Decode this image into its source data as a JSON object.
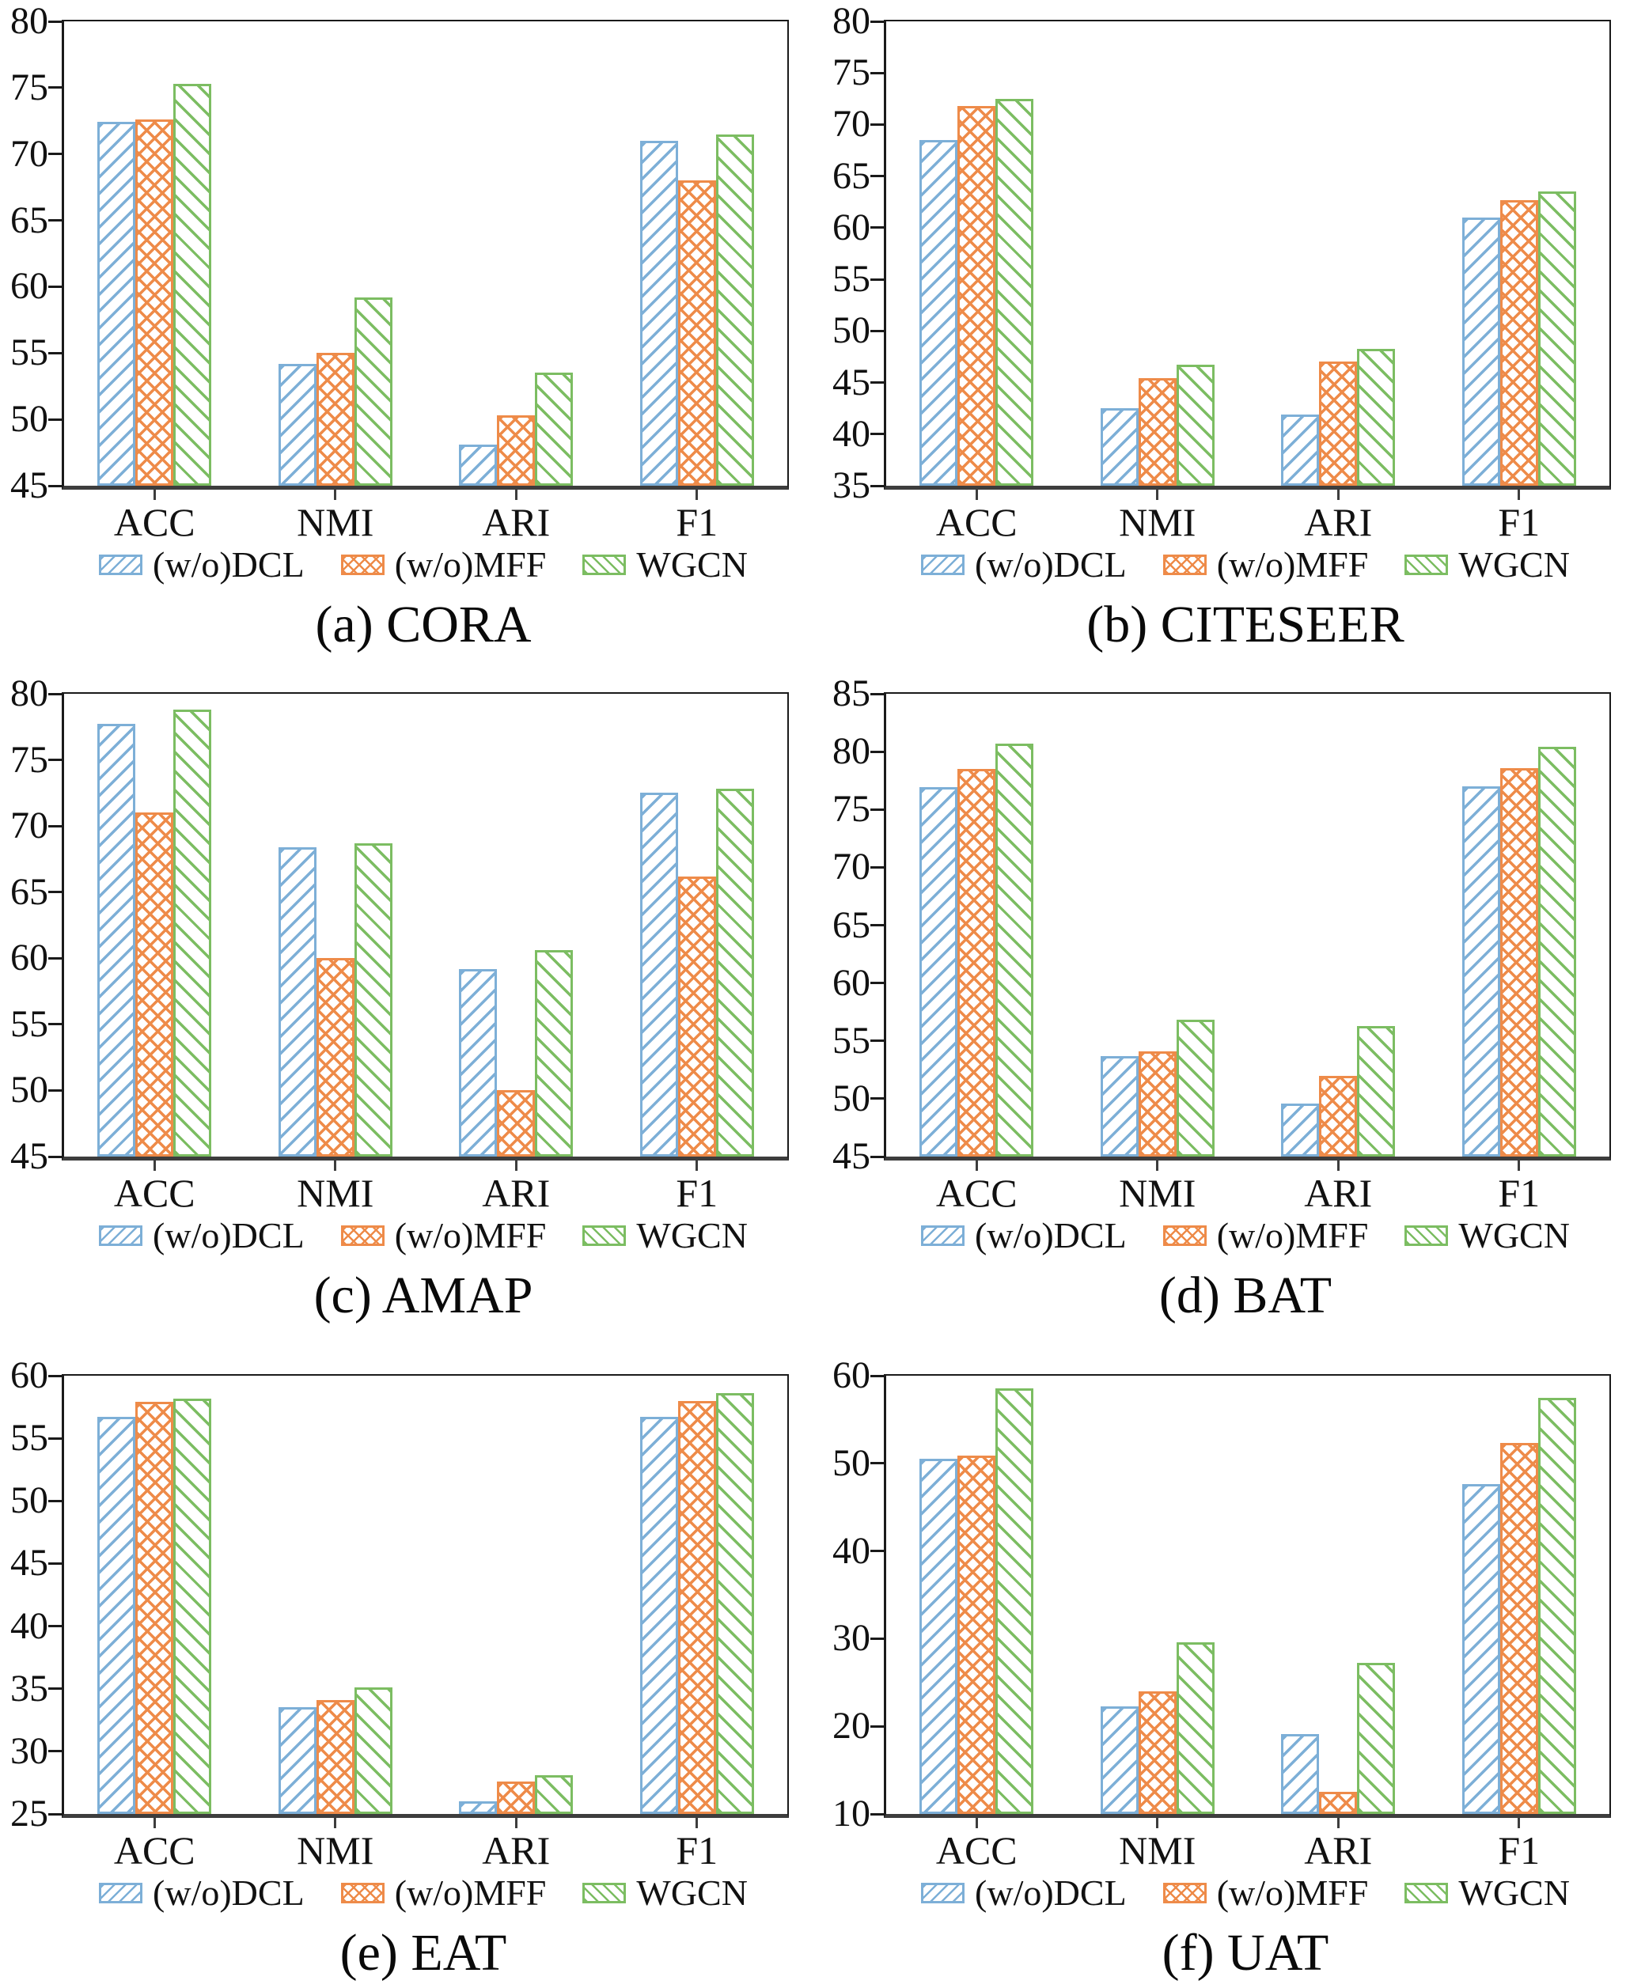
{
  "figure": {
    "description": "Ablation study bar charts of WGCN variants on six datasets",
    "metrics": [
      "ACC",
      "NMI",
      "ARI",
      "F1"
    ]
  },
  "colors": {
    "dcl_blue": "#7dafd7",
    "mff_orange": "#ee8b49",
    "wgcn_green": "#7cbd62",
    "axis_line": "#3d3d3d",
    "spine": "#1a1a1a"
  },
  "legend": {
    "items": [
      {
        "label": "(w/o)DCL",
        "color": "#7dafd7",
        "hatch": "/",
        "swatch_icon": "diagonal-hatch-swatch"
      },
      {
        "label": "(w/o)MFF",
        "color": "#ee8b49",
        "hatch": "x",
        "swatch_icon": "crosshatch-swatch"
      },
      {
        "label": "WGCN",
        "color": "#7cbd62",
        "hatch": "\\",
        "swatch_icon": "backslash-hatch-swatch"
      }
    ],
    "position": "bottom"
  },
  "chart_data": [
    {
      "type": "bar",
      "title": "(a) CORA",
      "xlabel": "",
      "ylabel": "",
      "grid": false,
      "legend_position": "bottom",
      "categories": [
        "ACC",
        "NMI",
        "ARI",
        "F1"
      ],
      "ylim": [
        45,
        80
      ],
      "yticks": [
        45,
        50,
        55,
        60,
        65,
        70,
        75,
        80
      ],
      "series": [
        {
          "name": "(w/o)DCL",
          "values": [
            72.4,
            54.2,
            48.1,
            71.0
          ]
        },
        {
          "name": "(w/o)MFF",
          "values": [
            72.6,
            55.0,
            50.3,
            68.0
          ]
        },
        {
          "name": "WGCN",
          "values": [
            75.3,
            59.2,
            53.5,
            71.5
          ]
        }
      ]
    },
    {
      "type": "bar",
      "title": "(b) CITESEER",
      "xlabel": "",
      "ylabel": "",
      "grid": false,
      "legend_position": "bottom",
      "categories": [
        "ACC",
        "NMI",
        "ARI",
        "F1"
      ],
      "ylim": [
        35,
        80
      ],
      "yticks": [
        35,
        40,
        45,
        50,
        55,
        60,
        65,
        70,
        75,
        80
      ],
      "series": [
        {
          "name": "(w/o)DCL",
          "values": [
            68.5,
            42.5,
            41.9,
            61.0
          ]
        },
        {
          "name": "(w/o)MFF",
          "values": [
            71.8,
            45.4,
            47.0,
            62.7
          ]
        },
        {
          "name": "WGCN",
          "values": [
            72.5,
            46.7,
            48.3,
            63.5
          ]
        }
      ]
    },
    {
      "type": "bar",
      "title": "(c) AMAP",
      "xlabel": "",
      "ylabel": "",
      "grid": false,
      "legend_position": "bottom",
      "categories": [
        "ACC",
        "NMI",
        "ARI",
        "F1"
      ],
      "ylim": [
        45,
        80
      ],
      "yticks": [
        45,
        50,
        55,
        60,
        65,
        70,
        75,
        80
      ],
      "series": [
        {
          "name": "(w/o)DCL",
          "values": [
            77.7,
            68.4,
            59.2,
            72.5
          ]
        },
        {
          "name": "(w/o)MFF",
          "values": [
            71.0,
            60.0,
            50.0,
            66.2
          ]
        },
        {
          "name": "WGCN",
          "values": [
            78.8,
            68.7,
            60.6,
            72.8
          ]
        }
      ]
    },
    {
      "type": "bar",
      "title": "(d) BAT",
      "xlabel": "",
      "ylabel": "",
      "grid": false,
      "legend_position": "bottom",
      "categories": [
        "ACC",
        "NMI",
        "ARI",
        "F1"
      ],
      "ylim": [
        45,
        85
      ],
      "yticks": [
        45,
        50,
        55,
        60,
        65,
        70,
        75,
        80,
        85
      ],
      "series": [
        {
          "name": "(w/o)DCL",
          "values": [
            76.9,
            53.7,
            49.6,
            77.0
          ]
        },
        {
          "name": "(w/o)MFF",
          "values": [
            78.5,
            54.1,
            52.0,
            78.6
          ]
        },
        {
          "name": "WGCN",
          "values": [
            80.7,
            56.8,
            56.3,
            80.4
          ]
        }
      ]
    },
    {
      "type": "bar",
      "title": "(e) EAT",
      "xlabel": "",
      "ylabel": "",
      "grid": false,
      "legend_position": "bottom",
      "categories": [
        "ACC",
        "NMI",
        "ARI",
        "F1"
      ],
      "ylim": [
        25,
        60
      ],
      "yticks": [
        25,
        30,
        35,
        40,
        45,
        50,
        55,
        60
      ],
      "series": [
        {
          "name": "(w/o)DCL",
          "values": [
            56.7,
            33.5,
            26.0,
            56.7
          ]
        },
        {
          "name": "(w/o)MFF",
          "values": [
            57.9,
            34.1,
            27.6,
            58.0
          ]
        },
        {
          "name": "WGCN",
          "values": [
            58.2,
            35.1,
            28.1,
            58.6
          ]
        }
      ]
    },
    {
      "type": "bar",
      "title": "(f) UAT",
      "xlabel": "",
      "ylabel": "",
      "grid": false,
      "legend_position": "bottom",
      "categories": [
        "ACC",
        "NMI",
        "ARI",
        "F1"
      ],
      "ylim": [
        10,
        60
      ],
      "yticks": [
        10,
        20,
        30,
        40,
        50,
        60
      ],
      "series": [
        {
          "name": "(w/o)DCL",
          "values": [
            50.5,
            22.3,
            19.1,
            47.6
          ]
        },
        {
          "name": "(w/o)MFF",
          "values": [
            50.9,
            24.0,
            12.5,
            52.3
          ]
        },
        {
          "name": "WGCN",
          "values": [
            58.6,
            29.6,
            27.2,
            57.5
          ]
        }
      ]
    }
  ]
}
